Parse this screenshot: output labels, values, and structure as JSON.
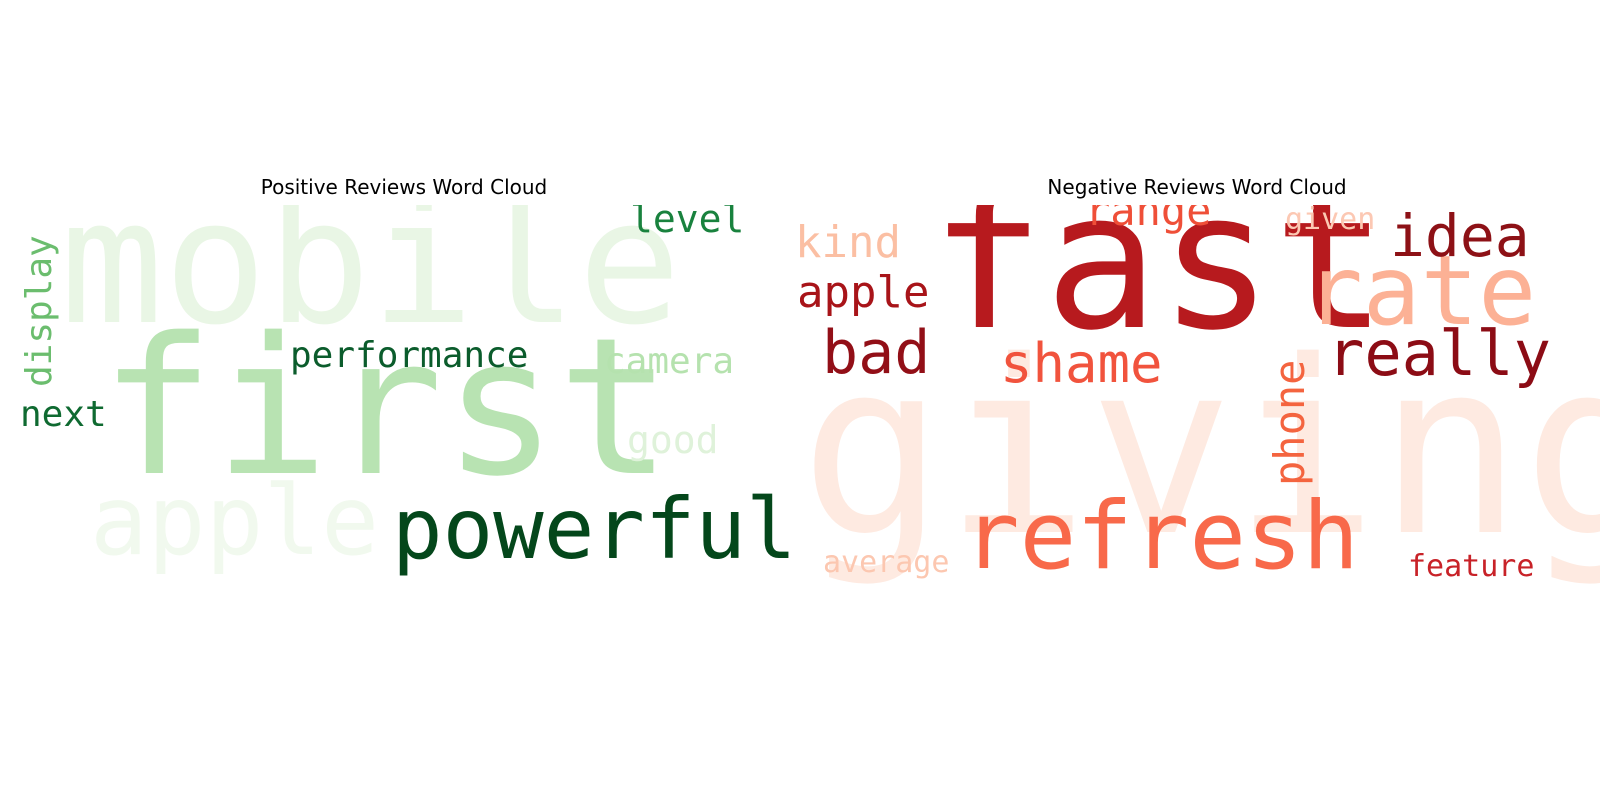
{
  "positive": {
    "title": "Positive Reviews Word Cloud",
    "words": [
      {
        "text": "mobile",
        "color": "#e9f6e5"
      },
      {
        "text": "first",
        "color": "#b8e3b2"
      },
      {
        "text": "apple",
        "color": "#f1f9ee"
      },
      {
        "text": "powerfull",
        "color": "#04471b"
      },
      {
        "text": "performance",
        "color": "#0b5c2c"
      },
      {
        "text": "level",
        "color": "#19823e"
      },
      {
        "text": "camera",
        "color": "#b5e2ae"
      },
      {
        "text": "good",
        "color": "#dff2da"
      },
      {
        "text": "display",
        "color": "#6bbd6e"
      },
      {
        "text": "next",
        "color": "#0f6a31"
      }
    ]
  },
  "negative": {
    "title": "Negative Reviews Word Cloud",
    "words": [
      {
        "text": "giving",
        "color": "#feeae1"
      },
      {
        "text": "fast",
        "color": "#b71a1e"
      },
      {
        "text": "refresh",
        "color": "#f8694a"
      },
      {
        "text": "rate",
        "color": "#fcb195"
      },
      {
        "text": "shame",
        "color": "#f1533d"
      },
      {
        "text": "really",
        "color": "#8c0c15"
      },
      {
        "text": "idea",
        "color": "#8d1116"
      },
      {
        "text": "bad",
        "color": "#920f17"
      },
      {
        "text": "apple",
        "color": "#a81419"
      },
      {
        "text": "kind",
        "color": "#fbbfa3"
      },
      {
        "text": "range",
        "color": "#ef4f38"
      },
      {
        "text": "given",
        "color": "#fcc8b3"
      },
      {
        "text": "phone",
        "color": "#f4643f"
      },
      {
        "text": "average",
        "color": "#fcc7b0"
      },
      {
        "text": "feature",
        "color": "#c82228"
      }
    ]
  }
}
